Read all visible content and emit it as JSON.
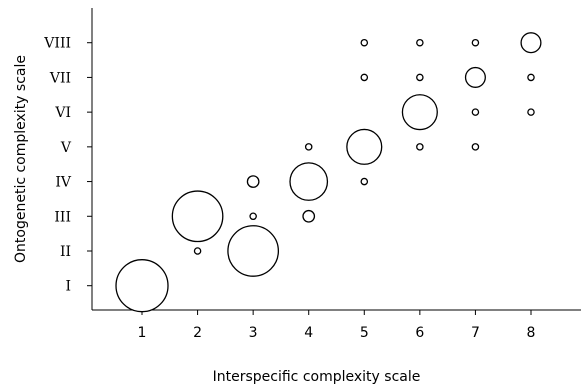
{
  "chart_data": {
    "type": "scatter",
    "title": "",
    "xlabel": "Interspecific complexity scale",
    "ylabel": "Ontogenetic  complexity scale",
    "x_ticks": [
      "1",
      "2",
      "3",
      "4",
      "5",
      "6",
      "7",
      "8"
    ],
    "y_ticks": [
      "I",
      "II",
      "III",
      "IV",
      "V",
      "VI",
      "VII",
      "VIII"
    ],
    "xlim": [
      0.1,
      8.9
    ],
    "ylim": [
      0.3,
      9.0
    ],
    "grid": false,
    "legend": "none",
    "size_encoding": "relative bubble size (0-1)",
    "points": [
      {
        "x": 1,
        "y": 1,
        "size": 1.0
      },
      {
        "x": 2,
        "y": 2,
        "size": 0.12
      },
      {
        "x": 2,
        "y": 3,
        "size": 0.97
      },
      {
        "x": 3,
        "y": 2,
        "size": 0.97
      },
      {
        "x": 3,
        "y": 3,
        "size": 0.12
      },
      {
        "x": 3,
        "y": 4,
        "size": 0.22
      },
      {
        "x": 4,
        "y": 3,
        "size": 0.22
      },
      {
        "x": 4,
        "y": 4,
        "size": 0.72
      },
      {
        "x": 4,
        "y": 5,
        "size": 0.12
      },
      {
        "x": 5,
        "y": 4,
        "size": 0.12
      },
      {
        "x": 5,
        "y": 5,
        "size": 0.67
      },
      {
        "x": 5,
        "y": 7,
        "size": 0.12
      },
      {
        "x": 5,
        "y": 8,
        "size": 0.12
      },
      {
        "x": 6,
        "y": 5,
        "size": 0.12
      },
      {
        "x": 6,
        "y": 6,
        "size": 0.67
      },
      {
        "x": 6,
        "y": 7,
        "size": 0.12
      },
      {
        "x": 6,
        "y": 8,
        "size": 0.12
      },
      {
        "x": 7,
        "y": 5,
        "size": 0.12
      },
      {
        "x": 7,
        "y": 6,
        "size": 0.12
      },
      {
        "x": 7,
        "y": 7,
        "size": 0.38
      },
      {
        "x": 7,
        "y": 8,
        "size": 0.12
      },
      {
        "x": 8,
        "y": 6,
        "size": 0.12
      },
      {
        "x": 8,
        "y": 7,
        "size": 0.12
      },
      {
        "x": 8,
        "y": 8,
        "size": 0.38
      }
    ]
  }
}
